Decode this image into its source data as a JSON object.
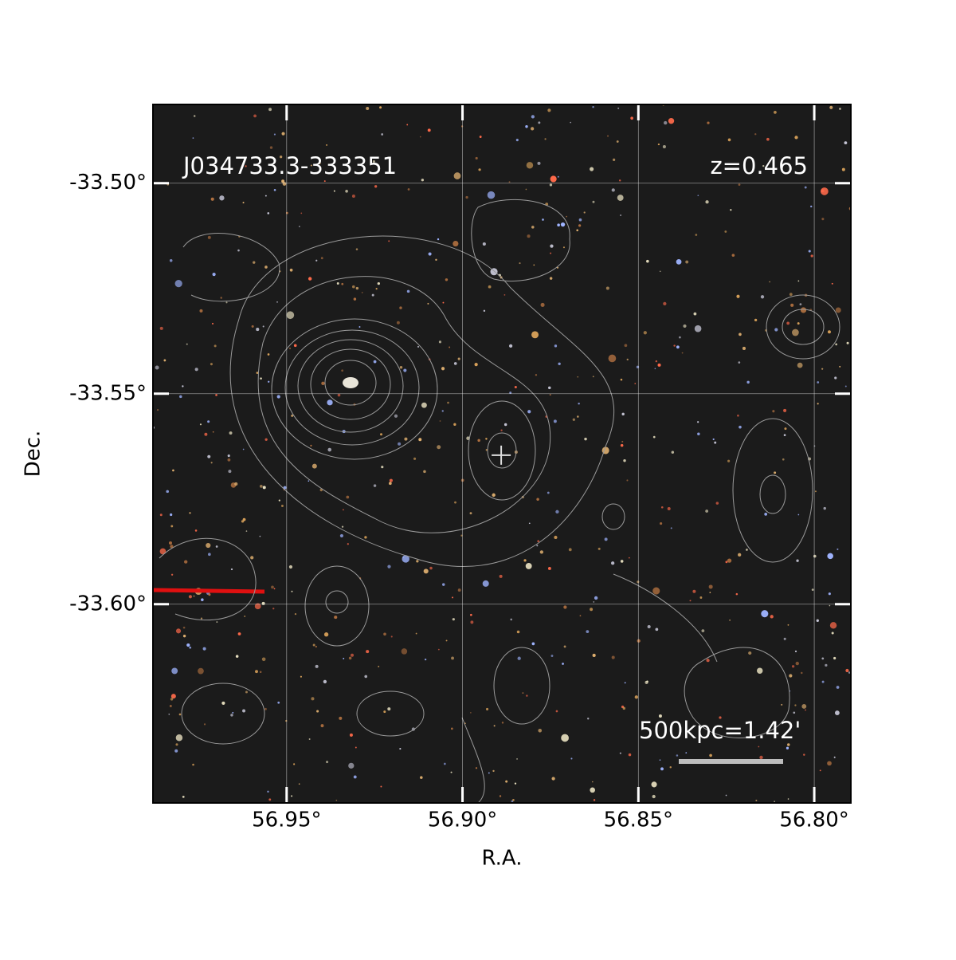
{
  "chart_data": {
    "type": "sky_image",
    "title": "J034733.3-333351",
    "redshift_label": "z=0.465",
    "scale_label": "500kpc=1.42'",
    "x_label": "R.A.",
    "y_label": "Dec.",
    "xlim": [
      56.988,
      56.7896
    ],
    "ylim": [
      -33.6472,
      -33.4813
    ],
    "xticks": [
      {
        "value": 56.95,
        "label": "56.95°"
      },
      {
        "value": 56.9,
        "label": "56.90°"
      },
      {
        "value": 56.85,
        "label": "56.85°"
      },
      {
        "value": 56.8,
        "label": "56.80°"
      }
    ],
    "yticks": [
      {
        "value": -33.5,
        "label": "-33.50°"
      },
      {
        "value": -33.55,
        "label": "-33.55°"
      },
      {
        "value": -33.6,
        "label": "-33.60°"
      }
    ],
    "grid": true,
    "center": {
      "ra": 56.889,
      "dec": -33.5646
    }
  }
}
